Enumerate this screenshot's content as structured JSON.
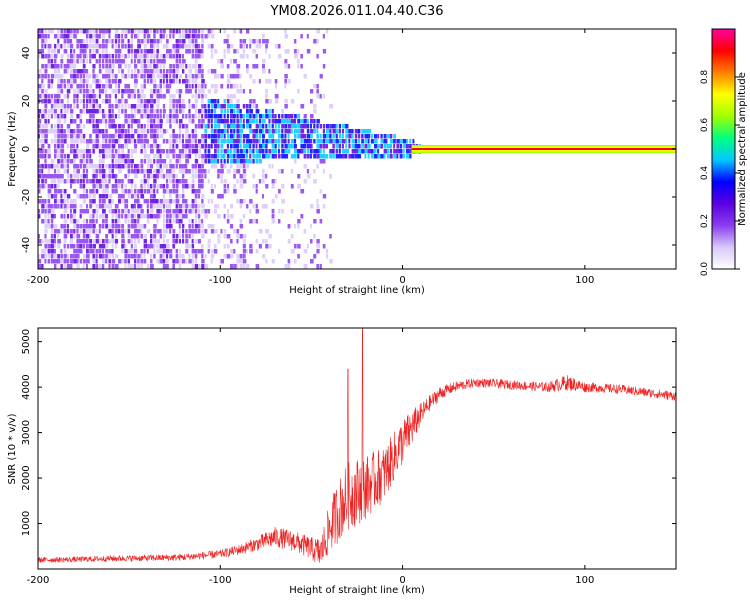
{
  "title": "YM08.2026.011.04.40.C36",
  "colors": {
    "background": "#ffffff",
    "axis": "#000000",
    "snr_line": "#ee2222",
    "colorbar_stops": [
      "#ffffff",
      "#d8c8f8",
      "#8a3cf0",
      "#5b00e0",
      "#0000ff",
      "#00c8ff",
      "#00ff80",
      "#a0ff00",
      "#ffff00",
      "#ff8000",
      "#ff0000",
      "#ff00a0"
    ]
  },
  "chart_data": [
    {
      "id": "spectrogram",
      "type": "heatmap",
      "title": "YM08.2026.011.04.40.C36",
      "xlabel": "Height of straight line (km)",
      "ylabel": "Frequency (Hz)",
      "xlim": [
        -200,
        150
      ],
      "ylim": [
        -50,
        50
      ],
      "xticks": [
        -200,
        -100,
        0,
        100
      ],
      "yticks": [
        -40,
        -20,
        0,
        20,
        40
      ],
      "x_tick_labels": [
        "-200",
        "-100",
        "0",
        "100"
      ],
      "y_tick_labels": [
        "-40",
        "-20",
        "0",
        "20",
        "40"
      ],
      "colorbar": {
        "label": "Normalized spectral amplitude",
        "range": [
          0,
          1
        ],
        "ticks": [
          0.0,
          0.2,
          0.4,
          0.6,
          0.8
        ],
        "tick_labels": [
          "0.0",
          "0.2",
          "0.4",
          "0.6",
          "0.8"
        ]
      },
      "features": [
        {
          "name": "broadband noise",
          "x_range": [
            -200,
            -110
          ],
          "freq_range": [
            -50,
            50
          ],
          "amplitude": 0.15
        },
        {
          "name": "sparse noise",
          "x_range": [
            -110,
            -40
          ],
          "freq_range": [
            -50,
            50
          ],
          "amplitude": 0.08
        },
        {
          "name": "converging signal",
          "x_range": [
            -110,
            10
          ],
          "freq_center": [
            8,
            0
          ],
          "amplitude": 0.35
        },
        {
          "name": "DC line",
          "x_range": [
            5,
            150
          ],
          "freq": 0,
          "amplitude": 0.95
        }
      ]
    },
    {
      "id": "snr",
      "type": "line",
      "xlabel": "Height of straight line (km)",
      "ylabel": "SNR (10 * v/v)",
      "xlim": [
        -200,
        150
      ],
      "ylim": [
        0,
        5300
      ],
      "xticks": [
        -200,
        -100,
        0,
        100
      ],
      "yticks": [
        1000,
        2000,
        3000,
        4000,
        5000
      ],
      "x_tick_labels": [
        "-200",
        "-100",
        "0",
        "100"
      ],
      "y_tick_labels": [
        "1000",
        "2000",
        "3000",
        "4000",
        "5000"
      ],
      "series": [
        {
          "name": "SNR",
          "x": [
            -200,
            -180,
            -160,
            -140,
            -120,
            -100,
            -90,
            -80,
            -70,
            -60,
            -50,
            -45,
            -40,
            -35,
            -30,
            -25,
            -20,
            -15,
            -10,
            -5,
            0,
            5,
            10,
            15,
            20,
            25,
            30,
            40,
            50,
            60,
            70,
            80,
            90,
            100,
            110,
            120,
            130,
            140,
            150
          ],
          "values": [
            200,
            210,
            230,
            240,
            260,
            330,
            420,
            550,
            700,
            620,
            450,
            350,
            900,
            1300,
            1600,
            1700,
            1800,
            1950,
            2100,
            2450,
            2800,
            3100,
            3400,
            3650,
            3850,
            3950,
            4020,
            4100,
            4080,
            4050,
            4020,
            4000,
            4100,
            4000,
            3980,
            3950,
            3900,
            3850,
            3800
          ],
          "noise_amplitude": [
            120,
            120,
            130,
            140,
            150,
            180,
            220,
            300,
            450,
            450,
            500,
            700,
            1100,
            1400,
            1500,
            1500,
            1400,
            1300,
            1200,
            1100,
            1000,
            800,
            500,
            350,
            300,
            250,
            220,
            200,
            200,
            200,
            200,
            220,
            350,
            220,
            200,
            200,
            200,
            200,
            200
          ]
        }
      ],
      "annotations": [
        {
          "label": "spike",
          "x": -22,
          "y": 5300
        },
        {
          "label": "spike",
          "x": -30,
          "y": 4400
        }
      ]
    }
  ]
}
